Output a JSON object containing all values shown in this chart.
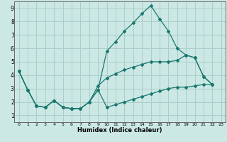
{
  "xlabel": "Humidex (Indice chaleur)",
  "background_color": "#cce8e4",
  "grid_color": "#aaceca",
  "line_color": "#1a7870",
  "xlim": [
    -0.5,
    23.5
  ],
  "ylim": [
    0.5,
    9.5
  ],
  "xticks": [
    0,
    1,
    2,
    3,
    4,
    5,
    6,
    7,
    8,
    9,
    10,
    11,
    12,
    13,
    14,
    15,
    16,
    17,
    18,
    19,
    20,
    21,
    22,
    23
  ],
  "yticks": [
    1,
    2,
    3,
    4,
    5,
    6,
    7,
    8,
    9
  ],
  "line1_x": [
    0,
    1,
    2,
    3,
    4,
    5,
    6,
    7,
    8,
    9,
    10,
    11,
    12,
    13,
    14,
    15,
    16,
    17,
    18,
    19,
    20,
    21,
    22
  ],
  "line1_y": [
    4.3,
    2.9,
    1.7,
    1.6,
    2.1,
    1.6,
    1.5,
    1.5,
    2.0,
    2.9,
    5.8,
    6.5,
    7.3,
    7.9,
    8.6,
    9.2,
    8.2,
    7.3,
    6.0,
    5.5,
    5.3,
    3.9,
    3.3
  ],
  "line2_x": [
    0,
    1,
    2,
    3,
    4,
    5,
    6,
    7,
    8,
    9,
    10,
    11,
    12,
    13,
    14,
    15,
    16,
    17,
    18,
    19,
    20,
    21,
    22
  ],
  "line2_y": [
    4.3,
    2.9,
    1.7,
    1.6,
    2.1,
    1.6,
    1.5,
    1.5,
    2.0,
    3.2,
    3.8,
    4.1,
    4.4,
    4.6,
    4.8,
    5.0,
    5.0,
    5.0,
    5.1,
    5.5,
    5.3,
    3.9,
    3.3
  ],
  "line3_x": [
    0,
    1,
    2,
    3,
    4,
    5,
    6,
    7,
    8,
    9,
    10,
    11,
    12,
    13,
    14,
    15,
    16,
    17,
    18,
    19,
    20,
    21,
    22
  ],
  "line3_y": [
    4.3,
    2.9,
    1.7,
    1.6,
    2.1,
    1.6,
    1.5,
    1.5,
    2.0,
    2.9,
    1.6,
    1.8,
    2.0,
    2.2,
    2.4,
    2.6,
    2.8,
    3.0,
    3.1,
    3.1,
    3.2,
    3.3,
    3.3
  ]
}
